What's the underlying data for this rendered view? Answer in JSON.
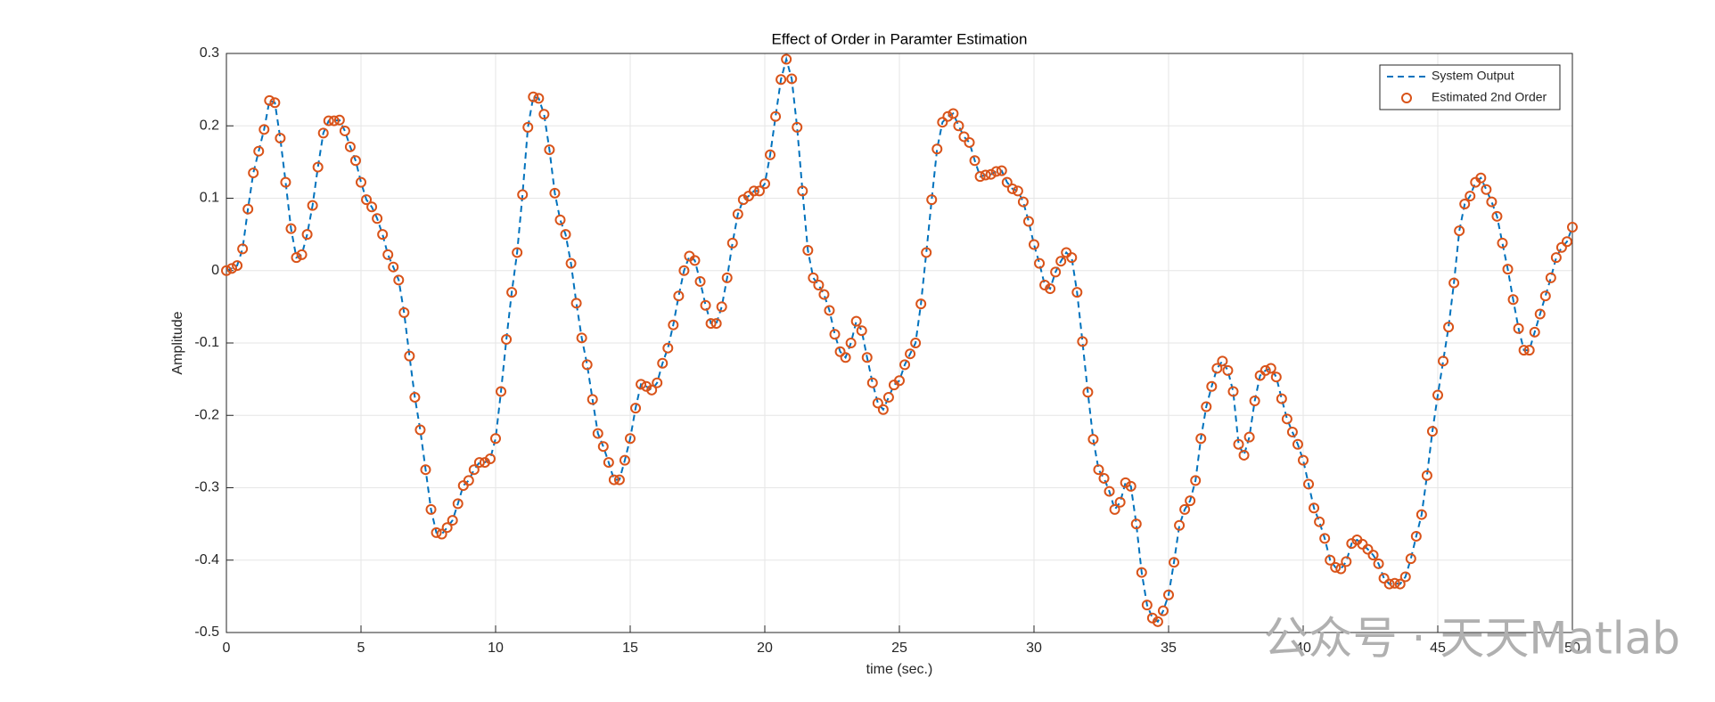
{
  "chart_data": {
    "type": "line",
    "title": "Effect of Order in Paramter Estimation",
    "xlabel": "time (sec.)",
    "ylabel": "Amplitude",
    "annotation": "公众号 · 天天Matlab",
    "x": [
      0,
      0.2,
      0.4,
      0.6,
      0.8,
      1,
      1.2,
      1.4,
      1.6,
      1.8,
      2,
      2.2,
      2.4,
      2.6,
      2.8,
      3,
      3.2,
      3.4,
      3.6,
      3.8,
      4,
      4.2,
      4.4,
      4.6,
      4.8,
      5,
      5.2,
      5.4,
      5.6,
      5.8,
      6,
      6.2,
      6.4,
      6.6,
      6.8,
      7,
      7.2,
      7.4,
      7.6,
      7.8,
      8,
      8.2,
      8.4,
      8.6,
      8.8,
      9,
      9.2,
      9.4,
      9.6,
      9.8,
      10,
      10.2,
      10.4,
      10.6,
      10.8,
      11,
      11.2,
      11.4,
      11.6,
      11.8,
      12,
      12.2,
      12.4,
      12.6,
      12.8,
      13,
      13.2,
      13.4,
      13.6,
      13.8,
      14,
      14.2,
      14.4,
      14.6,
      14.8,
      15,
      15.2,
      15.4,
      15.6,
      15.8,
      16,
      16.2,
      16.4,
      16.6,
      16.8,
      17,
      17.2,
      17.4,
      17.6,
      17.8,
      18,
      18.2,
      18.4,
      18.6,
      18.8,
      19,
      19.2,
      19.4,
      19.6,
      19.8,
      20,
      20.2,
      20.4,
      20.6,
      20.8,
      21,
      21.2,
      21.4,
      21.6,
      21.8,
      22,
      22.2,
      22.4,
      22.6,
      22.8,
      23,
      23.2,
      23.4,
      23.6,
      23.8,
      24,
      24.2,
      24.4,
      24.6,
      24.8,
      25,
      25.2,
      25.4,
      25.6,
      25.8,
      26,
      26.2,
      26.4,
      26.6,
      26.8,
      27,
      27.2,
      27.4,
      27.6,
      27.8,
      28,
      28.2,
      28.4,
      28.6,
      28.8,
      29,
      29.2,
      29.4,
      29.6,
      29.8,
      30,
      30.2,
      30.4,
      30.6,
      30.8,
      31,
      31.2,
      31.4,
      31.6,
      31.8,
      32,
      32.2,
      32.4,
      32.6,
      32.8,
      33,
      33.2,
      33.4,
      33.6,
      33.8,
      34,
      34.2,
      34.4,
      34.6,
      34.8,
      35,
      35.2,
      35.4,
      35.6,
      35.8,
      36,
      36.2,
      36.4,
      36.6,
      36.8,
      37,
      37.2,
      37.4,
      37.6,
      37.8,
      38,
      38.2,
      38.4,
      38.6,
      38.8,
      39,
      39.2,
      39.4,
      39.6,
      39.8,
      40,
      40.2,
      40.4,
      40.6,
      40.8,
      41,
      41.2,
      41.4,
      41.6,
      41.8,
      42,
      42.2,
      42.4,
      42.6,
      42.8,
      43,
      43.2,
      43.4,
      43.6,
      43.8,
      44,
      44.2,
      44.4,
      44.6,
      44.8,
      45,
      45.2,
      45.4,
      45.6,
      45.8,
      46,
      46.2,
      46.4,
      46.6,
      46.8,
      47,
      47.2,
      47.4,
      47.6,
      47.8,
      48,
      48.2,
      48.4,
      48.6,
      48.8,
      49,
      49.2,
      49.4,
      49.6,
      49.8,
      50
    ],
    "series": [
      {
        "name": "System Output",
        "color": "#0072bd",
        "style": "dashed",
        "values": [
          0,
          0.003,
          0.007,
          0.03,
          0.085,
          0.135,
          0.165,
          0.195,
          0.235,
          0.232,
          0.183,
          0.122,
          0.058,
          0.018,
          0.022,
          0.05,
          0.09,
          0.143,
          0.19,
          0.207,
          0.207,
          0.208,
          0.193,
          0.171,
          0.152,
          0.122,
          0.098,
          0.088,
          0.072,
          0.05,
          0.022,
          0.005,
          -0.013,
          -0.058,
          -0.118,
          -0.175,
          -0.22,
          -0.275,
          -0.33,
          -0.362,
          -0.364,
          -0.355,
          -0.345,
          -0.322,
          -0.297,
          -0.29,
          -0.275,
          -0.265,
          -0.265,
          -0.26,
          -0.232,
          -0.167,
          -0.095,
          -0.03,
          0.025,
          0.105,
          0.198,
          0.24,
          0.238,
          0.216,
          0.167,
          0.107,
          0.07,
          0.05,
          0.01,
          -0.045,
          -0.093,
          -0.13,
          -0.178,
          -0.225,
          -0.243,
          -0.265,
          -0.289,
          -0.289,
          -0.262,
          -0.232,
          -0.19,
          -0.157,
          -0.16,
          -0.165,
          -0.155,
          -0.128,
          -0.107,
          -0.075,
          -0.035,
          0,
          0.02,
          0.014,
          -0.015,
          -0.048,
          -0.073,
          -0.073,
          -0.05,
          -0.01,
          0.038,
          0.078,
          0.098,
          0.103,
          0.11,
          0.11,
          0.12,
          0.16,
          0.213,
          0.264,
          0.292,
          0.265,
          0.198,
          0.11,
          0.028,
          -0.01,
          -0.02,
          -0.033,
          -0.055,
          -0.088,
          -0.112,
          -0.12,
          -0.1,
          -0.07,
          -0.083,
          -0.12,
          -0.155,
          -0.183,
          -0.192,
          -0.175,
          -0.158,
          -0.152,
          -0.13,
          -0.115,
          -0.1,
          -0.046,
          0.025,
          0.098,
          0.168,
          0.205,
          0.213,
          0.217,
          0.2,
          0.185,
          0.177,
          0.152,
          0.13,
          0.132,
          0.133,
          0.137,
          0.138,
          0.122,
          0.113,
          0.11,
          0.095,
          0.068,
          0.036,
          0.01,
          -0.02,
          -0.025,
          -0.002,
          0.013,
          0.025,
          0.018,
          -0.03,
          -0.098,
          -0.168,
          -0.233,
          -0.275,
          -0.287,
          -0.305,
          -0.33,
          -0.32,
          -0.293,
          -0.298,
          -0.35,
          -0.417,
          -0.462,
          -0.48,
          -0.485,
          -0.47,
          -0.448,
          -0.403,
          -0.352,
          -0.33,
          -0.318,
          -0.29,
          -0.232,
          -0.188,
          -0.16,
          -0.135,
          -0.125,
          -0.138,
          -0.167,
          -0.24,
          -0.255,
          -0.23,
          -0.18,
          -0.145,
          -0.138,
          -0.135,
          -0.147,
          -0.177,
          -0.205,
          -0.223,
          -0.24,
          -0.262,
          -0.295,
          -0.328,
          -0.347,
          -0.37,
          -0.4,
          -0.41,
          -0.412,
          -0.402,
          -0.377,
          -0.372,
          -0.378,
          -0.385,
          -0.393,
          -0.405,
          -0.425,
          -0.433,
          -0.432,
          -0.433,
          -0.423,
          -0.398,
          -0.367,
          -0.337,
          -0.283,
          -0.222,
          -0.172,
          -0.125,
          -0.078,
          -0.017,
          0.055,
          0.092,
          0.103,
          0.122,
          0.128,
          0.112,
          0.095,
          0.075,
          0.038,
          0.002,
          -0.04,
          -0.08,
          -0.11,
          -0.11,
          -0.085,
          -0.06,
          -0.035,
          -0.01,
          0.018,
          0.032,
          0.04,
          0.06
        ]
      },
      {
        "name": "Estimated 2nd Order",
        "color": "#d95319",
        "style": "markers",
        "values": [
          0,
          0.003,
          0.007,
          0.03,
          0.085,
          0.135,
          0.165,
          0.195,
          0.235,
          0.232,
          0.183,
          0.122,
          0.058,
          0.018,
          0.022,
          0.05,
          0.09,
          0.143,
          0.19,
          0.207,
          0.207,
          0.208,
          0.193,
          0.171,
          0.152,
          0.122,
          0.098,
          0.088,
          0.072,
          0.05,
          0.022,
          0.005,
          -0.013,
          -0.058,
          -0.118,
          -0.175,
          -0.22,
          -0.275,
          -0.33,
          -0.362,
          -0.364,
          -0.355,
          -0.345,
          -0.322,
          -0.297,
          -0.29,
          -0.275,
          -0.265,
          -0.265,
          -0.26,
          -0.232,
          -0.167,
          -0.095,
          -0.03,
          0.025,
          0.105,
          0.198,
          0.24,
          0.238,
          0.216,
          0.167,
          0.107,
          0.07,
          0.05,
          0.01,
          -0.045,
          -0.093,
          -0.13,
          -0.178,
          -0.225,
          -0.243,
          -0.265,
          -0.289,
          -0.289,
          -0.262,
          -0.232,
          -0.19,
          -0.157,
          -0.16,
          -0.165,
          -0.155,
          -0.128,
          -0.107,
          -0.075,
          -0.035,
          0,
          0.02,
          0.014,
          -0.015,
          -0.048,
          -0.073,
          -0.073,
          -0.05,
          -0.01,
          0.038,
          0.078,
          0.098,
          0.103,
          0.11,
          0.11,
          0.12,
          0.16,
          0.213,
          0.264,
          0.292,
          0.265,
          0.198,
          0.11,
          0.028,
          -0.01,
          -0.02,
          -0.033,
          -0.055,
          -0.088,
          -0.112,
          -0.12,
          -0.1,
          -0.07,
          -0.083,
          -0.12,
          -0.155,
          -0.183,
          -0.192,
          -0.175,
          -0.158,
          -0.152,
          -0.13,
          -0.115,
          -0.1,
          -0.046,
          0.025,
          0.098,
          0.168,
          0.205,
          0.213,
          0.217,
          0.2,
          0.185,
          0.177,
          0.152,
          0.13,
          0.132,
          0.133,
          0.137,
          0.138,
          0.122,
          0.113,
          0.11,
          0.095,
          0.068,
          0.036,
          0.01,
          -0.02,
          -0.025,
          -0.002,
          0.013,
          0.025,
          0.018,
          -0.03,
          -0.098,
          -0.168,
          -0.233,
          -0.275,
          -0.287,
          -0.305,
          -0.33,
          -0.32,
          -0.293,
          -0.298,
          -0.35,
          -0.417,
          -0.462,
          -0.48,
          -0.485,
          -0.47,
          -0.448,
          -0.403,
          -0.352,
          -0.33,
          -0.318,
          -0.29,
          -0.232,
          -0.188,
          -0.16,
          -0.135,
          -0.125,
          -0.138,
          -0.167,
          -0.24,
          -0.255,
          -0.23,
          -0.18,
          -0.145,
          -0.138,
          -0.135,
          -0.147,
          -0.177,
          -0.205,
          -0.223,
          -0.24,
          -0.262,
          -0.295,
          -0.328,
          -0.347,
          -0.37,
          -0.4,
          -0.41,
          -0.412,
          -0.402,
          -0.377,
          -0.372,
          -0.378,
          -0.385,
          -0.393,
          -0.405,
          -0.425,
          -0.433,
          -0.432,
          -0.433,
          -0.423,
          -0.398,
          -0.367,
          -0.337,
          -0.283,
          -0.222,
          -0.172,
          -0.125,
          -0.078,
          -0.017,
          0.055,
          0.092,
          0.103,
          0.122,
          0.128,
          0.112,
          0.095,
          0.075,
          0.038,
          0.002,
          -0.04,
          -0.08,
          -0.11,
          -0.11,
          -0.085,
          -0.06,
          -0.035,
          -0.01,
          0.018,
          0.032,
          0.04,
          0.06
        ]
      }
    ],
    "xlim": [
      0,
      50
    ],
    "xticks": [
      0,
      5,
      10,
      15,
      20,
      25,
      30,
      35,
      40,
      45,
      50
    ],
    "ylim": [
      -0.5,
      0.3
    ],
    "yticks": [
      -0.5,
      -0.4,
      -0.3,
      -0.2,
      -0.1,
      0,
      0.1,
      0.2,
      0.3
    ],
    "grid": true,
    "legend": "northeast"
  }
}
